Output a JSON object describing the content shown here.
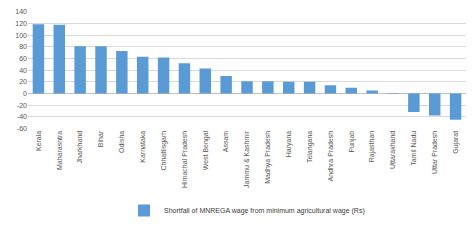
{
  "chart_data": {
    "type": "bar",
    "categories": [
      "Kerala",
      "Maharashtra",
      "Jharkhand",
      "Bihar",
      "Odisha",
      "Karnataka",
      "Chhattisgarh",
      "Himachal Pradesh",
      "West Bengal",
      "Assam",
      "Jammu & Kashmir",
      "Madhya Pradesh",
      "Haryana",
      "Telangana",
      "Andhra Pradesh",
      "Punjab",
      "Rajasthan",
      "Uttarakhand",
      "Tamil Nadu",
      "Uttar Pradesh",
      "Gujarat"
    ],
    "series": [
      {
        "name": "Shortfall of MNREGA wage from minimum agricultural wage (Rs)",
        "color": "#5b9bd5",
        "values": [
          119,
          118,
          81,
          81,
          73,
          63,
          62,
          52,
          43,
          30,
          21,
          21,
          20,
          20,
          14,
          10,
          5,
          -1,
          -32,
          -38,
          -45
        ]
      }
    ],
    "ylim": [
      -60,
      140
    ],
    "yticks": [
      -60,
      -40,
      -20,
      0,
      20,
      40,
      60,
      80,
      100,
      120,
      140
    ],
    "grid": true,
    "legend": "bottom"
  }
}
